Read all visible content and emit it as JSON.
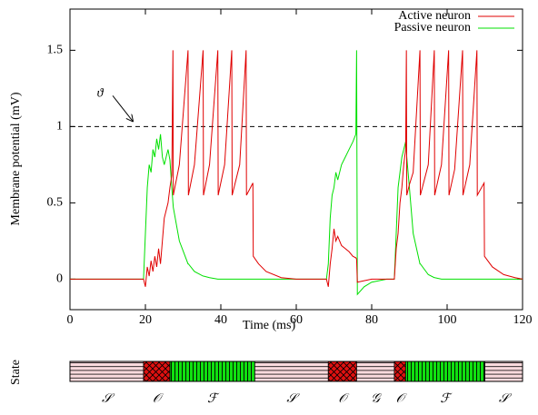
{
  "chart_data": {
    "type": "line",
    "xlabel": "Time (ms)",
    "ylabel": "Membrane potential (mV)",
    "xlim": [
      0,
      120
    ],
    "ylim": [
      -0.2,
      1.77
    ],
    "xticks": [
      0,
      20,
      40,
      60,
      80,
      100,
      120
    ],
    "yticks": [
      0,
      0.5,
      1,
      1.5
    ],
    "legend": "top-right",
    "threshold": {
      "value": 1,
      "label": "ϑ"
    },
    "x": [
      0,
      19.5,
      20,
      20.5,
      21,
      21.5,
      22,
      22.5,
      23,
      23.5,
      24,
      24.5,
      25,
      25.5,
      26,
      26.5,
      27,
      27.3,
      27.4,
      29,
      31.3,
      31.4,
      33,
      35.3,
      35.4,
      37,
      39.2,
      39.3,
      41,
      42.9,
      43,
      45,
      46.7,
      46.8,
      48.5,
      48.6,
      50,
      52,
      56,
      60,
      68,
      68.5,
      69,
      69.5,
      70,
      70.5,
      71,
      72,
      73,
      74,
      75,
      75.8,
      76,
      76.2,
      78,
      80,
      84,
      86,
      86.5,
      87,
      87.5,
      88,
      88.5,
      89,
      89.2,
      89.3,
      90,
      91,
      92.8,
      92.9,
      95,
      96.6,
      96.7,
      98.5,
      100.4,
      100.5,
      102,
      104.1,
      104.2,
      106,
      107.9,
      108,
      109.8,
      109.9,
      112,
      115,
      118,
      120
    ],
    "series": [
      {
        "name": "Active neuron",
        "color": "#e00000",
        "values": [
          0,
          0,
          -0.05,
          0.08,
          0.02,
          0.12,
          0.05,
          0.15,
          0.08,
          0.2,
          0.1,
          0.25,
          0.4,
          0.45,
          0.5,
          0.6,
          0.68,
          1.5,
          0.55,
          0.75,
          1.5,
          0.55,
          0.75,
          1.5,
          0.55,
          0.75,
          1.5,
          0.55,
          0.75,
          1.5,
          0.55,
          0.75,
          1.5,
          0.55,
          0.63,
          0.15,
          0.1,
          0.05,
          0.01,
          0,
          0,
          -0.05,
          0.1,
          0.2,
          0.33,
          0.25,
          0.28,
          0.22,
          0.2,
          0.18,
          0.15,
          0.14,
          0.13,
          -0.02,
          -0.01,
          0,
          0,
          0,
          0.2,
          0.3,
          0.5,
          0.6,
          0.75,
          0.85,
          1.5,
          0.55,
          0.62,
          0.7,
          1.5,
          0.55,
          0.75,
          1.5,
          0.55,
          0.75,
          1.5,
          0.55,
          0.72,
          1.5,
          0.55,
          0.75,
          1.5,
          0.55,
          0.63,
          0.15,
          0.08,
          0.03,
          0.01,
          0
        ]
      },
      {
        "name": "Passive neuron",
        "color": "#00e000",
        "values": [
          0,
          0,
          0.3,
          0.6,
          0.75,
          0.7,
          0.85,
          0.8,
          0.92,
          0.85,
          0.95,
          0.8,
          0.75,
          0.8,
          0.85,
          0.78,
          0.6,
          0.5,
          0.47,
          0.25,
          0.1,
          0.1,
          0.05,
          0.02,
          0.02,
          0.01,
          0,
          0,
          0,
          0,
          0,
          0,
          0,
          0,
          0,
          0,
          0,
          0,
          0,
          0,
          0,
          0.1,
          0.4,
          0.55,
          0.6,
          0.7,
          0.65,
          0.75,
          0.8,
          0.85,
          0.9,
          0.95,
          1.5,
          -0.1,
          -0.05,
          -0.02,
          0,
          0,
          0.3,
          0.6,
          0.7,
          0.8,
          0.85,
          0.9,
          0.85,
          0.8,
          0.6,
          0.3,
          0.1,
          0.1,
          0.03,
          0.01,
          0.01,
          0,
          0,
          0,
          0,
          0,
          0,
          0,
          0,
          0,
          0,
          0,
          0,
          0,
          0,
          0
        ]
      }
    ],
    "state_bar": {
      "label": "State",
      "segments": [
        {
          "label": "𝒮",
          "start": 0,
          "end": 19.5,
          "hatch": "horizontal"
        },
        {
          "label": "𝒪",
          "start": 19.5,
          "end": 26.5,
          "hatch": "cross"
        },
        {
          "label": "ℱ",
          "start": 26.5,
          "end": 49,
          "hatch": "vertical"
        },
        {
          "label": "𝒮",
          "start": 49,
          "end": 68.5,
          "hatch": "horizontal"
        },
        {
          "label": "𝒪",
          "start": 68.5,
          "end": 76,
          "hatch": "cross"
        },
        {
          "label": "𝒢",
          "start": 76,
          "end": 86,
          "hatch": "horizontal"
        },
        {
          "label": "𝒪",
          "start": 86,
          "end": 89,
          "hatch": "cross"
        },
        {
          "label": "ℱ",
          "start": 89,
          "end": 110,
          "hatch": "vertical"
        },
        {
          "label": "𝒮",
          "start": 110,
          "end": 120,
          "hatch": "horizontal"
        }
      ]
    }
  }
}
